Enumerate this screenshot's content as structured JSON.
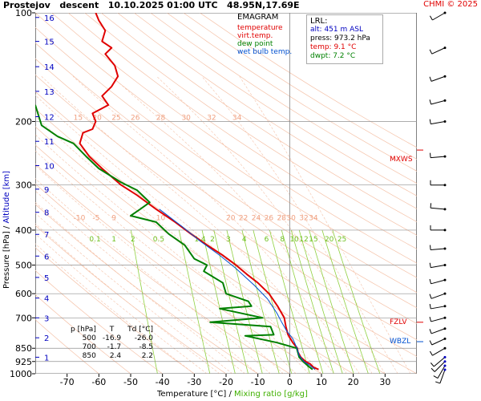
{
  "header": {
    "station": "Prostejov",
    "mode": "descent",
    "datetime": "10.10.2025 01:00 UTC",
    "coords": "48.95N,17.69E",
    "copyright": "CHMI © 2025"
  },
  "legend": {
    "title": "EMAGRAM",
    "items": [
      {
        "label": "temperature",
        "color": "#e00000"
      },
      {
        "label": "virt.temp.",
        "color": "#e00000"
      },
      {
        "label": "dew point",
        "color": "#008000"
      },
      {
        "label": "wet bulb temp.",
        "color": "#0050d0"
      }
    ]
  },
  "lrl": {
    "title": "LRL:",
    "alt": "alt: 451 m ASL",
    "press": "press: 973.2 hPa",
    "temp": "temp: 9.1 °C",
    "dwpt": "dwpt: 7.2 °C",
    "colors": {
      "alt": "#0000c0",
      "press": "#000000",
      "temp": "#e00000",
      "dwpt": "#008000"
    }
  },
  "level_labels": {
    "mxws": "MXWS",
    "fzlv": "FZLV",
    "wbzl": "WBZL"
  },
  "table": {
    "headers": [
      "p [hPa]",
      "T",
      "Td [°C]"
    ],
    "rows": [
      [
        "500",
        "-16.9",
        "-26.0"
      ],
      [
        "700",
        "-1.7",
        "-8.5"
      ],
      [
        "850",
        "2.4",
        "2.2"
      ]
    ]
  },
  "axes": {
    "ylabel_pressure": "Pressure [hPa]",
    "ylabel_sep": " / ",
    "ylabel_altitude": "Altitude [km]",
    "xlabel_temp": "Temperature [°C]",
    "xlabel_sep": " / ",
    "xlabel_mix": "Mixing ratio [g/kg]"
  },
  "chart_data": {
    "type": "line",
    "title": "EMAGRAM",
    "xlabel": "Temperature [°C] / Mixing ratio [g/kg]",
    "ylabel": "Pressure [hPa] / Altitude [km]",
    "xlim": [
      -80,
      40
    ],
    "ylim": [
      1000,
      100
    ],
    "y_scale": "log",
    "x_ticks": [
      -70,
      -60,
      -50,
      -40,
      -30,
      -20,
      -10,
      0,
      10,
      20,
      30
    ],
    "y_ticks": [
      100,
      200,
      300,
      400,
      500,
      600,
      700,
      850,
      925,
      1000
    ],
    "altitude_ticks_km": [
      1,
      2,
      3,
      4,
      5,
      6,
      7,
      8,
      9,
      10,
      11,
      12,
      13,
      14,
      15,
      16
    ],
    "altitude_tick_pressures": [
      900,
      795,
      700,
      617,
      541,
      472,
      411,
      357,
      308,
      265,
      227,
      194,
      165,
      141,
      120,
      103
    ],
    "dry_adiabat_labels": [
      15,
      20,
      25,
      26,
      28,
      30,
      32,
      34
    ],
    "moist_adiabat_labels": [
      -10,
      -5,
      9,
      10,
      20,
      22,
      24,
      26,
      28,
      30,
      32,
      34
    ],
    "mixing_ratio_labels": [
      "0.1",
      "1",
      "2",
      "0.5",
      "1.4",
      "2",
      "3",
      "4",
      "6",
      "8",
      "10",
      "12",
      "15",
      "20",
      "25"
    ],
    "grid": true,
    "series": [
      {
        "name": "temperature",
        "color": "#e00000",
        "points": [
          [
            9.1,
            973
          ],
          [
            7.5,
            960
          ],
          [
            6.5,
            940
          ],
          [
            5.0,
            925
          ],
          [
            3.5,
            900
          ],
          [
            2.6,
            870
          ],
          [
            2.4,
            850
          ],
          [
            1.0,
            820
          ],
          [
            -0.5,
            780
          ],
          [
            -1.2,
            740
          ],
          [
            -1.7,
            700
          ],
          [
            -3.8,
            650
          ],
          [
            -6.5,
            600
          ],
          [
            -10.0,
            560
          ],
          [
            -13.5,
            530
          ],
          [
            -16.9,
            500
          ],
          [
            -21,
            470
          ],
          [
            -26,
            440
          ],
          [
            -31,
            410
          ],
          [
            -36,
            380
          ],
          [
            -42,
            350
          ],
          [
            -48,
            320
          ],
          [
            -53,
            300
          ],
          [
            -59,
            270
          ],
          [
            -63,
            250
          ],
          [
            -66,
            230
          ],
          [
            -65,
            215
          ],
          [
            -62,
            210
          ],
          [
            -61,
            200
          ],
          [
            -62,
            190
          ],
          [
            -57,
            180
          ],
          [
            -59,
            170
          ],
          [
            -56,
            160
          ],
          [
            -54,
            150
          ],
          [
            -55,
            140
          ],
          [
            -58,
            130
          ],
          [
            -56,
            125
          ],
          [
            -59,
            120
          ],
          [
            -58,
            112
          ],
          [
            -60,
            105
          ],
          [
            -61,
            100
          ]
        ]
      },
      {
        "name": "dew point",
        "color": "#008000",
        "points": [
          [
            7.2,
            973
          ],
          [
            6.0,
            955
          ],
          [
            4.5,
            930
          ],
          [
            3.0,
            900
          ],
          [
            2.2,
            850
          ],
          [
            -4,
            820
          ],
          [
            -14,
            785
          ],
          [
            -5,
            780
          ],
          [
            -6,
            740
          ],
          [
            -25,
            720
          ],
          [
            -8.5,
            700
          ],
          [
            -22,
            660
          ],
          [
            -12,
            650
          ],
          [
            -13,
            630
          ],
          [
            -20,
            600
          ],
          [
            -21,
            560
          ],
          [
            -27,
            520
          ],
          [
            -26,
            500
          ],
          [
            -30,
            480
          ],
          [
            -33,
            440
          ],
          [
            -38,
            410
          ],
          [
            -42,
            380
          ],
          [
            -50,
            365
          ],
          [
            -47,
            350
          ],
          [
            -44,
            335
          ],
          [
            -48,
            310
          ],
          [
            -53,
            295
          ],
          [
            -60,
            270
          ],
          [
            -64,
            250
          ],
          [
            -68,
            230
          ],
          [
            -73,
            220
          ],
          [
            -78,
            205
          ],
          [
            -80,
            180
          ]
        ]
      },
      {
        "name": "wet bulb temp.",
        "color": "#0050d0",
        "points": [
          [
            8.0,
            973
          ],
          [
            6.5,
            950
          ],
          [
            4.5,
            925
          ],
          [
            3.0,
            890
          ],
          [
            2.3,
            850
          ],
          [
            1.0,
            800
          ],
          [
            -1,
            760
          ],
          [
            -2.5,
            720
          ],
          [
            -4,
            680
          ],
          [
            -7,
            620
          ],
          [
            -11,
            570
          ],
          [
            -17,
            510
          ],
          [
            -22,
            470
          ],
          [
            -28,
            430
          ],
          [
            -34,
            390
          ],
          [
            -41,
            350
          ]
        ]
      }
    ],
    "wind_barb_pressures": [
      975,
      950,
      925,
      900,
      850,
      800,
      750,
      700,
      650,
      600,
      550,
      500,
      450,
      400,
      350,
      300,
      250,
      200,
      175,
      150,
      125,
      100
    ],
    "special_levels": [
      {
        "label": "MXWS",
        "pressure": 240
      },
      {
        "label": "FZLV",
        "pressure": 720
      },
      {
        "label": "WBZL",
        "pressure": 815
      }
    ]
  }
}
